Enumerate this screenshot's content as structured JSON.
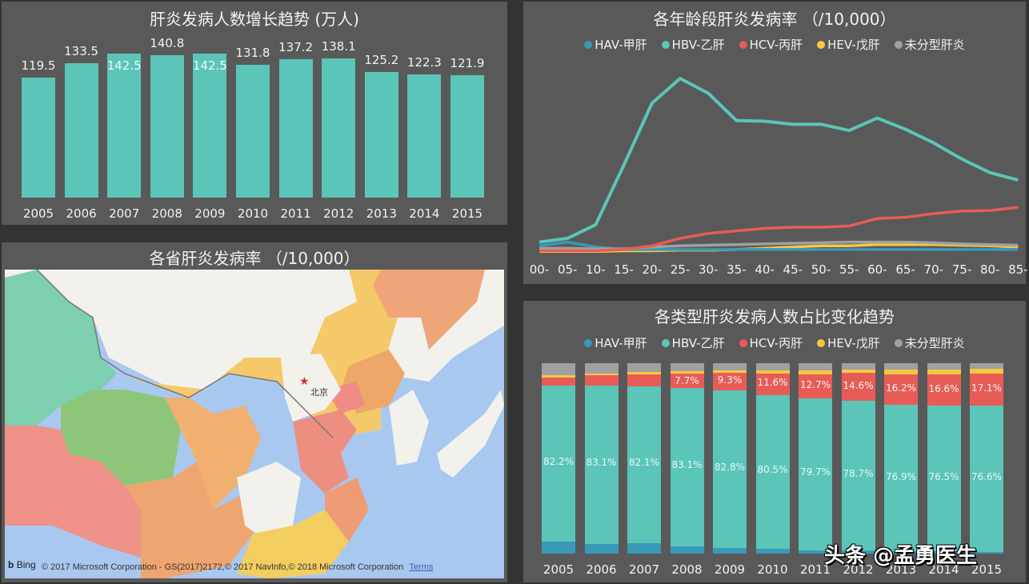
{
  "colors": {
    "page_bg": "#333333",
    "panel_bg": "#595959",
    "hav": "#3a98b9",
    "hbv": "#5bc5b8",
    "hcv": "#e85c56",
    "hev": "#f5c842",
    "unclassified": "#a0a0a0"
  },
  "legend": [
    {
      "key": "hav",
      "label": "HAV-甲肝",
      "color": "#3a98b9"
    },
    {
      "key": "hbv",
      "label": "HBV-乙肝",
      "color": "#5bc5b8"
    },
    {
      "key": "hcv",
      "label": "HCV-丙肝",
      "color": "#e85c56"
    },
    {
      "key": "hev",
      "label": "HEV-戊肝",
      "color": "#f5c842"
    },
    {
      "key": "unclassified",
      "label": "未分型肝炎",
      "color": "#a0a0a0"
    }
  ],
  "panels": {
    "cases": {
      "title": "肝炎发病人数增长趋势 (万人)"
    },
    "age": {
      "title": "各年龄段肝炎发病率 （/10,000）"
    },
    "map": {
      "title": "各省肝炎发病率 （/10,000）",
      "city_label": "北京",
      "bing_label": "Bing",
      "attribution": "© 2017 Microsoft Corporation - GS(2017)2172,© 2017 NavInfo,© 2018 Microsoft Corporation",
      "terms_label": "Terms"
    },
    "share": {
      "title": "各类型肝炎发病人数占比变化趋势"
    }
  },
  "watermark": "头条 @孟勇医生",
  "chart_data": [
    {
      "type": "bar",
      "title": "肝炎发病人数增长趋势 (万人)",
      "categories": [
        "2005",
        "2006",
        "2007",
        "2008",
        "2009",
        "2010",
        "2011",
        "2012",
        "2013",
        "2014",
        "2015"
      ],
      "values": [
        119.5,
        133.5,
        142.5,
        140.8,
        142.5,
        131.8,
        137.2,
        138.1,
        125.2,
        122.3,
        121.9
      ],
      "xlabel": "",
      "ylabel": "万人",
      "ylim": [
        0,
        150
      ],
      "grid": false,
      "color": "#5bc5b8"
    },
    {
      "type": "line",
      "title": "各年龄段肝炎发病率 （/10,000）",
      "x": [
        "00-",
        "05-",
        "10-",
        "15-",
        "20-",
        "25-",
        "30-",
        "35-",
        "40-",
        "45-",
        "50-",
        "55-",
        "60-",
        "65-",
        "70-",
        "75-",
        "80-",
        "85-"
      ],
      "series": [
        {
          "name": "HAV-甲肝",
          "values": [
            0.5,
            0.8,
            0.4,
            0.2,
            0.2,
            0.2,
            0.2,
            0.2,
            0.2,
            0.2,
            0.2,
            0.2,
            0.2,
            0.2,
            0.2,
            0.2,
            0.2,
            0.2
          ]
        },
        {
          "name": "HBV-乙肝",
          "values": [
            0.8,
            1.1,
            2.2,
            7.0,
            12.0,
            14.0,
            12.8,
            10.6,
            10.55,
            10.3,
            10.3,
            9.8,
            10.8,
            9.9,
            8.8,
            7.5,
            6.4,
            5.8
          ]
        },
        {
          "name": "HCV-丙肝",
          "values": [
            0.1,
            0.1,
            0.1,
            0.2,
            0.5,
            1.1,
            1.5,
            1.7,
            1.9,
            2.0,
            2.0,
            2.1,
            2.7,
            2.8,
            3.1,
            3.3,
            3.35,
            3.6
          ]
        },
        {
          "name": "HEV-戊肝",
          "values": [
            0.05,
            0.05,
            0.05,
            0.1,
            0.1,
            0.15,
            0.15,
            0.2,
            0.3,
            0.4,
            0.5,
            0.5,
            0.6,
            0.6,
            0.6,
            0.55,
            0.5,
            0.4
          ]
        },
        {
          "name": "未分型肝炎",
          "values": [
            0.3,
            0.3,
            0.25,
            0.25,
            0.4,
            0.5,
            0.55,
            0.6,
            0.65,
            0.7,
            0.75,
            0.8,
            0.8,
            0.8,
            0.75,
            0.65,
            0.6,
            0.55
          ]
        }
      ],
      "xlabel": "",
      "ylabel": "",
      "ylim": [
        0,
        15
      ],
      "grid": false,
      "legend_position": "top"
    },
    {
      "type": "bar",
      "stacked": true,
      "percent": true,
      "title": "各类型肝炎发病人数占比变化趋势",
      "categories": [
        "2005",
        "2006",
        "2007",
        "2008",
        "2009",
        "2010",
        "2011",
        "2012",
        "2013",
        "2014",
        "2015"
      ],
      "series": [
        {
          "name": "HAV-甲肝",
          "values": [
            6.1,
            5.1,
            5.6,
            3.9,
            2.8,
            2.6,
            1.8,
            1.5,
            1.2,
            1.1,
            1.0
          ]
        },
        {
          "name": "HBV-乙肝",
          "values": [
            82.2,
            83.1,
            82.1,
            83.1,
            82.8,
            80.5,
            79.7,
            78.7,
            76.9,
            76.5,
            76.6
          ]
        },
        {
          "name": "HCV-丙肝",
          "values": [
            4.3,
            5.3,
            6.4,
            7.7,
            9.3,
            11.6,
            12.7,
            14.6,
            16.2,
            16.6,
            17.1
          ]
        },
        {
          "name": "HEV-戊肝",
          "values": [
            1.2,
            1.2,
            1.2,
            1.1,
            1.3,
            1.7,
            2.0,
            2.0,
            2.2,
            2.3,
            2.5
          ]
        },
        {
          "name": "未分型肝炎",
          "values": [
            6.2,
            5.3,
            4.7,
            4.2,
            3.8,
            3.6,
            3.8,
            3.2,
            3.5,
            3.5,
            2.8
          ]
        }
      ],
      "data_labels": {
        "HBV-乙肝": [
          "82.2%",
          "83.1%",
          "82.1%",
          "83.1%",
          "82.8%",
          "80.5%",
          "79.7%",
          "78.7%",
          "76.9%",
          "76.5%",
          "76.6%"
        ],
        "HCV-丙肝": [
          "",
          "",
          "",
          "7.7%",
          "9.3%",
          "11.6%",
          "12.7%",
          "14.6%",
          "16.2%",
          "16.6%",
          "17.1%"
        ]
      },
      "xlabel": "",
      "ylabel": "",
      "ylim": [
        0,
        100
      ],
      "grid": false,
      "legend_position": "top"
    }
  ]
}
